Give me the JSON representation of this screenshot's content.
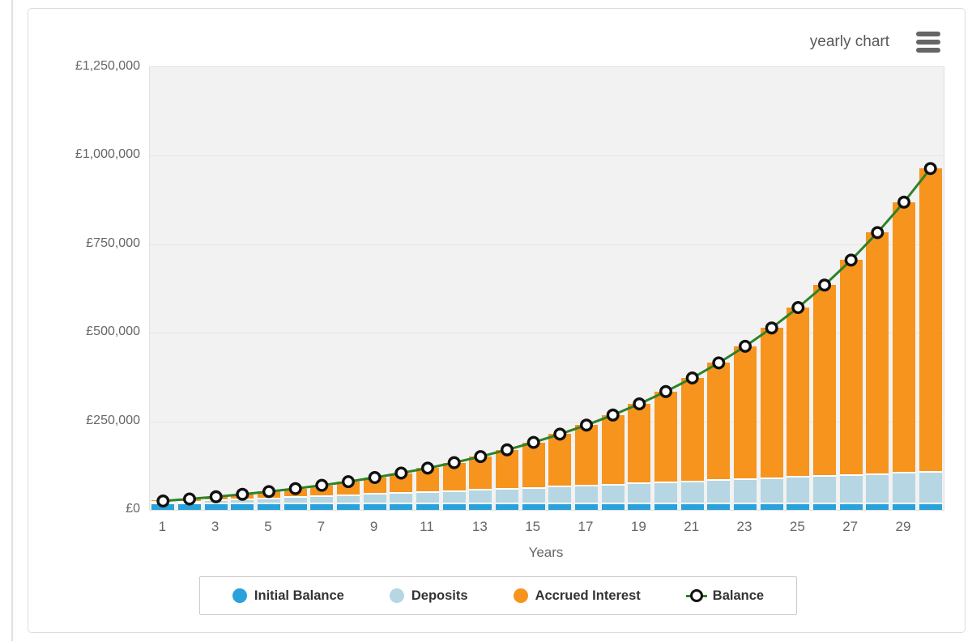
{
  "header": {
    "chart_type_label": "yearly chart",
    "menu_icon": "hamburger-menu"
  },
  "chart_data": {
    "type": "bar",
    "subtype": "stacked-columns-with-line-overlay",
    "title": "",
    "xlabel": "Years",
    "ylabel": "",
    "currency": "£",
    "ylim": [
      0,
      1250000
    ],
    "grid": true,
    "legend_position": "bottom",
    "plot_background": "#f2f2f2",
    "x": [
      1,
      2,
      3,
      4,
      5,
      6,
      7,
      8,
      9,
      10,
      11,
      12,
      13,
      14,
      15,
      16,
      17,
      18,
      19,
      20,
      21,
      22,
      23,
      24,
      25,
      26,
      27,
      28,
      29,
      30
    ],
    "x_ticks_shown": [
      "1",
      "3",
      "5",
      "7",
      "9",
      "11",
      "13",
      "15",
      "17",
      "19",
      "21",
      "23",
      "25",
      "27",
      "29"
    ],
    "y_ticks": [
      {
        "label": "£0",
        "value": 0
      },
      {
        "label": "£250,000",
        "value": 250000
      },
      {
        "label": "£500,000",
        "value": 500000
      },
      {
        "label": "£750,000",
        "value": 750000
      },
      {
        "label": "£1,000,000",
        "value": 1000000
      },
      {
        "label": "£1,250,000",
        "value": 1250000
      }
    ],
    "series": [
      {
        "name": "Initial Balance",
        "render": "column",
        "color": "#29a2dc",
        "values": [
          20000,
          20000,
          20000,
          20000,
          20000,
          20000,
          20000,
          20000,
          20000,
          20000,
          20000,
          20000,
          20000,
          20000,
          20000,
          20000,
          20000,
          20000,
          20000,
          20000,
          20000,
          20000,
          20000,
          20000,
          20000,
          20000,
          20000,
          20000,
          20000,
          20000
        ]
      },
      {
        "name": "Deposits",
        "render": "column",
        "color": "#b5d6e2",
        "values": [
          3000,
          6000,
          9000,
          12000,
          15000,
          18000,
          21000,
          24000,
          27000,
          30000,
          33000,
          36000,
          39000,
          42000,
          45000,
          48000,
          51000,
          54000,
          57000,
          60000,
          63000,
          66000,
          69000,
          72000,
          75000,
          78000,
          81000,
          84000,
          87000,
          90000
        ]
      },
      {
        "name": "Accrued Interest",
        "render": "column",
        "color": "#f7941e",
        "values": [
          2100,
          4800,
          8000,
          12000,
          16600,
          22100,
          28500,
          35800,
          44300,
          54000,
          65000,
          77500,
          91700,
          107600,
          125600,
          145800,
          168500,
          193900,
          222300,
          254000,
          289400,
          328900,
          372900,
          421800,
          476300,
          536800,
          604100,
          678900,
          761800,
          853900
        ]
      },
      {
        "name": "Balance",
        "render": "line",
        "color": "#2d8228",
        "marker": "white-circle-black-ring",
        "values": [
          25100,
          30800,
          37000,
          44000,
          51600,
          60100,
          69500,
          79800,
          91300,
          104000,
          118000,
          133500,
          150700,
          169600,
          190600,
          213800,
          239500,
          267900,
          299300,
          334000,
          372400,
          414900,
          461900,
          513800,
          571300,
          634800,
          705100,
          782900,
          868800,
          963900
        ]
      }
    ]
  }
}
